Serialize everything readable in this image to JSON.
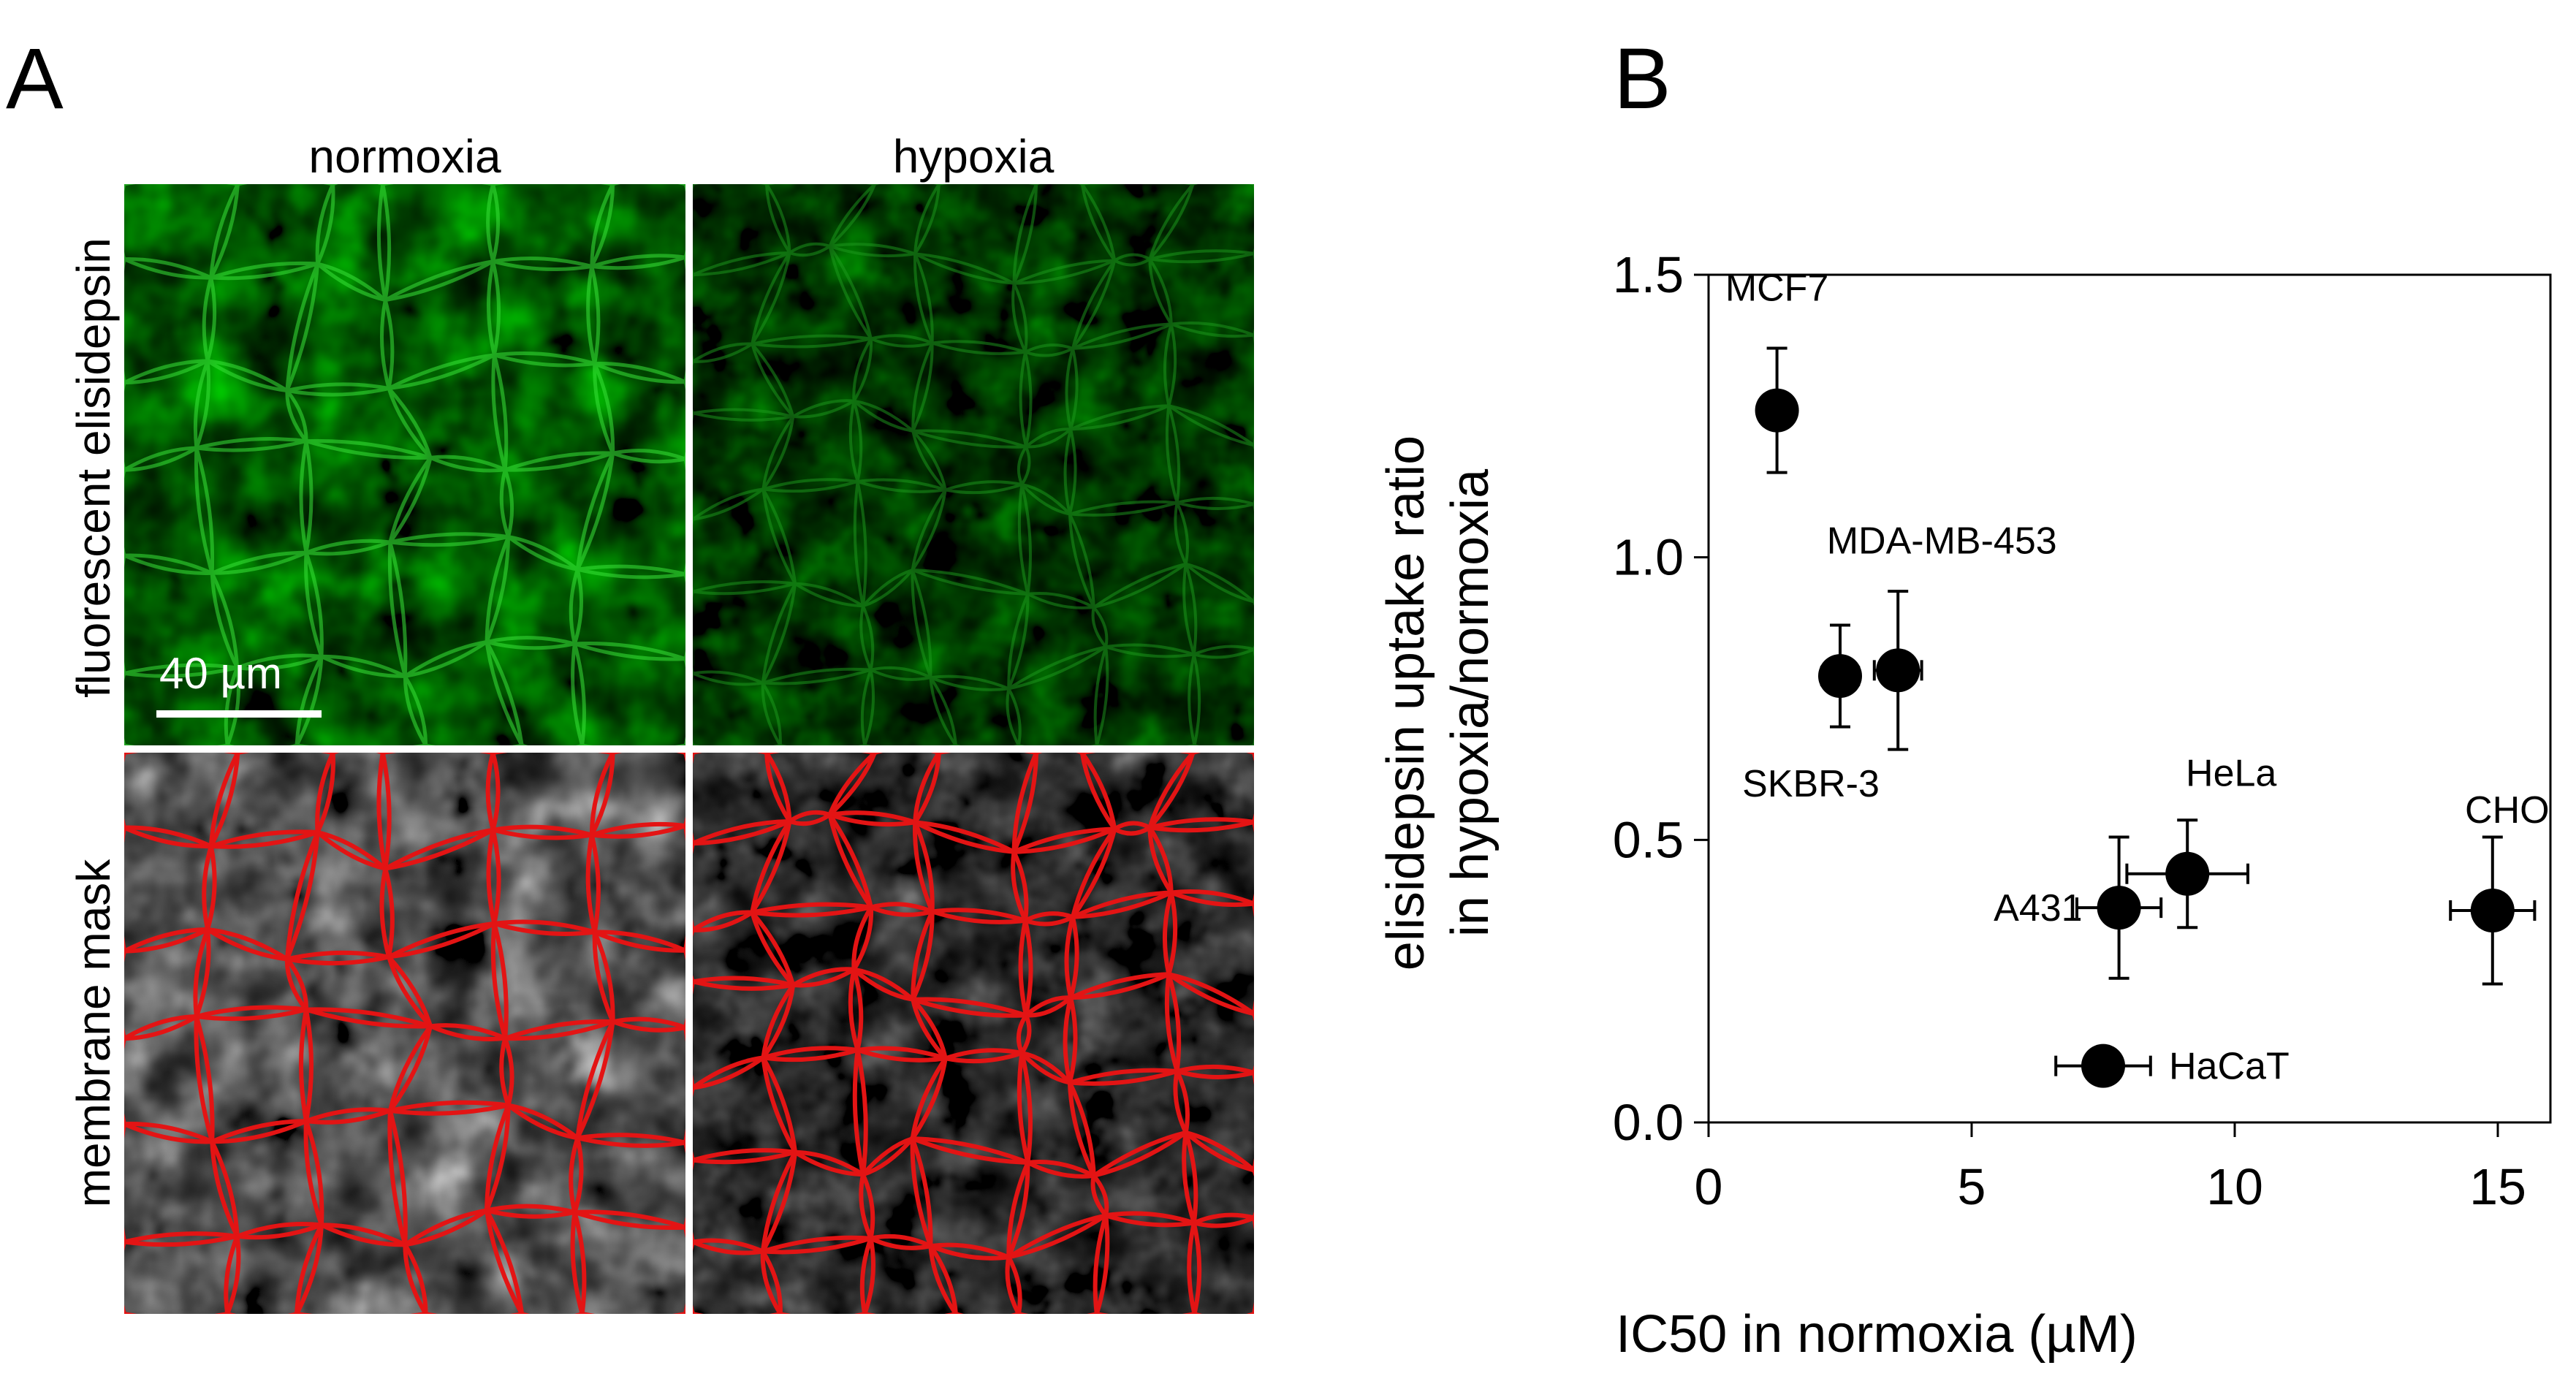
{
  "panel_a": {
    "letter": "A",
    "columns": [
      "normoxia",
      "hypoxia"
    ],
    "rows": [
      "fluorescent elisidepsin",
      "membrane mask"
    ],
    "scale_bar": "40 µm"
  },
  "panel_b": {
    "letter": "B"
  },
  "colors": {
    "green_channel": "#2ccf2c",
    "membrane_outline": "#e31414",
    "gray_channel": "#8c8c8c",
    "marker": "#000000"
  },
  "chart_data": {
    "type": "scatter",
    "title": "",
    "xlabel": "IC50 in normoxia (µM)",
    "ylabel": [
      "elisidepsin uptake ratio",
      "in hypoxia/normoxia"
    ],
    "xlim": [
      0,
      16
    ],
    "ylim": [
      0,
      1.5
    ],
    "xticks": [
      0,
      5,
      10,
      15
    ],
    "yticks": [
      0.0,
      0.5,
      1.0,
      1.5
    ],
    "xtick_labels": [
      "0",
      "5",
      "10",
      "15"
    ],
    "ytick_labels": [
      "0.0",
      "0.5",
      "1.0",
      "1.5"
    ],
    "grid": false,
    "legend": "none",
    "points": [
      {
        "label": "MCF7",
        "x": 1.3,
        "y": 1.26,
        "xerr": 0,
        "yerr": 0.11
      },
      {
        "label": "SKBR-3",
        "x": 2.5,
        "y": 0.79,
        "xerr": 0.35,
        "yerr": 0.09
      },
      {
        "label": "MDA-MB-453",
        "x": 3.6,
        "y": 0.8,
        "xerr": 0.45,
        "yerr": 0.14
      },
      {
        "label": "A431",
        "x": 7.8,
        "y": 0.38,
        "xerr": 0.8,
        "yerr": 0.125
      },
      {
        "label": "HeLa",
        "x": 9.1,
        "y": 0.44,
        "xerr": 1.15,
        "yerr": 0.095
      },
      {
        "label": "HaCaT",
        "x": 7.5,
        "y": 0.1,
        "xerr": 0.9,
        "yerr": 0
      },
      {
        "label": "CHO",
        "x": 14.9,
        "y": 0.375,
        "xerr": 0.8,
        "yerr": 0.13
      }
    ]
  }
}
